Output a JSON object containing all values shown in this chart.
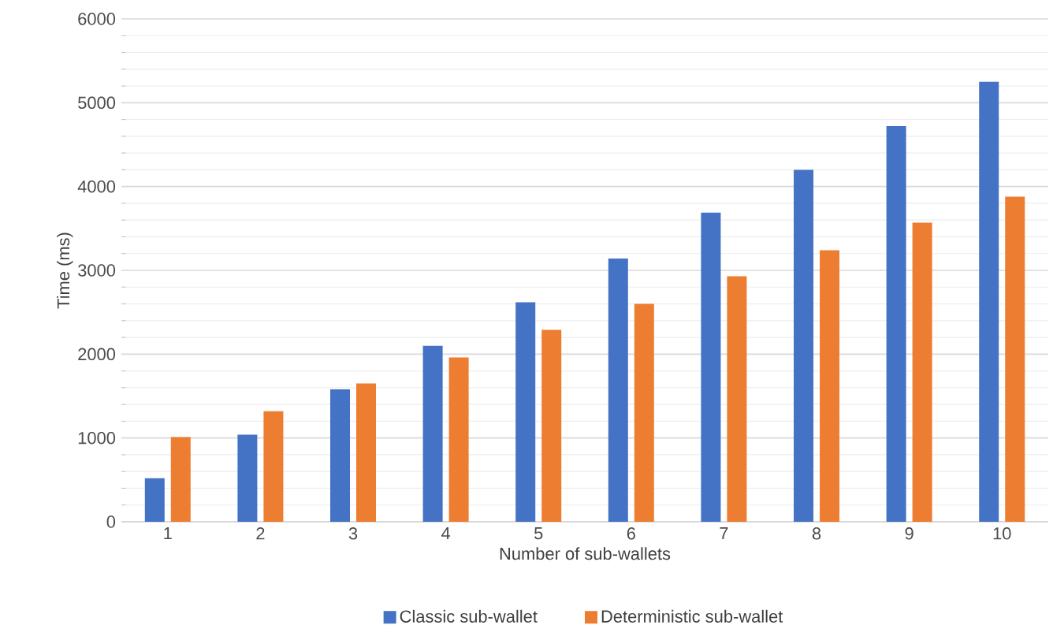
{
  "chart_data": {
    "type": "bar",
    "xlabel": "Number of sub-wallets",
    "ylabel": "Time (ms)",
    "categories": [
      "1",
      "2",
      "3",
      "4",
      "5",
      "6",
      "7",
      "8",
      "9",
      "10"
    ],
    "series": [
      {
        "name": "Classic sub-wallet",
        "color": "#4472c4",
        "values": [
          520,
          1040,
          1580,
          2100,
          2620,
          3140,
          3690,
          4200,
          4720,
          5250
        ]
      },
      {
        "name": "Deterministic sub-wallet",
        "color": "#ed7d31",
        "values": [
          1010,
          1320,
          1650,
          1960,
          2290,
          2600,
          2930,
          3240,
          3570,
          3880
        ]
      }
    ],
    "ylim": [
      0,
      6000
    ],
    "yticks": [
      0,
      1000,
      2000,
      3000,
      4000,
      5000,
      6000
    ],
    "grid": "y",
    "legend": "bottom"
  }
}
